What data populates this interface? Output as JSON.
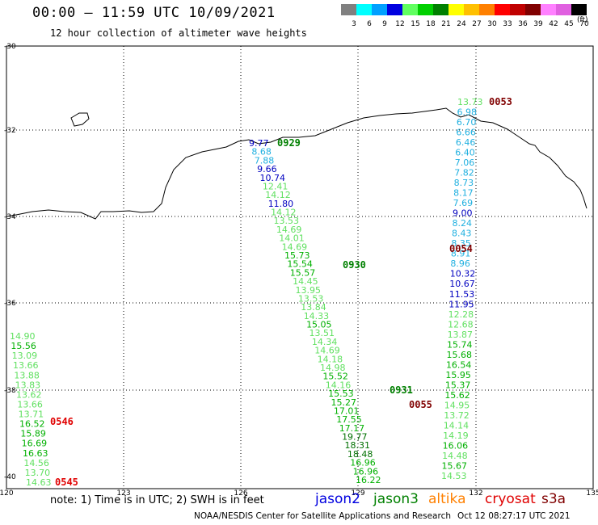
{
  "header": {
    "title": "00:00 – 11:59 UTC 10/09/2021",
    "subtitle": "12 hour collection of altimeter wave heights"
  },
  "legend": {
    "unit": "(ft)",
    "bins": [
      {
        "label": "3",
        "color": "#808080"
      },
      {
        "label": "6",
        "color": "#00ffff"
      },
      {
        "label": "9",
        "color": "#00a0ff"
      },
      {
        "label": "12",
        "color": "#0000e0"
      },
      {
        "label": "15",
        "color": "#60ff60"
      },
      {
        "label": "18",
        "color": "#00d000"
      },
      {
        "label": "21",
        "color": "#008000"
      },
      {
        "label": "24",
        "color": "#ffff00"
      },
      {
        "label": "27",
        "color": "#ffc000"
      },
      {
        "label": "30",
        "color": "#ff8000"
      },
      {
        "label": "33",
        "color": "#ff0000"
      },
      {
        "label": "36",
        "color": "#c00000"
      },
      {
        "label": "39",
        "color": "#800000"
      },
      {
        "label": "42",
        "color": "#ff80ff"
      },
      {
        "label": "45",
        "color": "#e060e0"
      },
      {
        "label": "70",
        "color": "#000000"
      }
    ]
  },
  "axes": {
    "lat_labels": [
      "-30",
      "-32",
      "-34",
      "-36",
      "-38",
      "-40"
    ],
    "lon_labels": [
      "120",
      "123",
      "126",
      "129",
      "132",
      "135"
    ]
  },
  "tracks": {
    "track_a": [
      "9.77",
      "8.68",
      "7.88",
      "9.66",
      "10.74",
      "12.41",
      "14.12",
      "11.80",
      "14.12",
      "13.53",
      "14.69",
      "14.01",
      "14.69",
      "15.73",
      "15.54",
      "15.57",
      "14.45",
      "13.95",
      "13.53",
      "13.84",
      "14.33",
      "15.05",
      "13.51",
      "14.34",
      "14.69",
      "14.18",
      "14.98",
      "15.52",
      "14.16",
      "15.53",
      "15.27",
      "17.01",
      "17.55",
      "17.17",
      "19.77",
      "18.31",
      "18.48",
      "16.96",
      "16.96",
      "16.22"
    ],
    "track_b": [
      "13.73",
      "6.98",
      "6.70",
      "6.66",
      "6.46",
      "6.40",
      "7.06",
      "7.82",
      "8.73",
      "8.17",
      "7.69",
      "9.00",
      "8.24",
      "8.43",
      "8.35",
      "8.91",
      "8.96",
      "10.32",
      "10.67",
      "11.53",
      "11.95",
      "12.28",
      "12.68",
      "13.87",
      "15.74",
      "15.68",
      "16.54",
      "15.95",
      "15.37",
      "15.62",
      "14.95",
      "13.72",
      "14.14",
      "14.19",
      "16.06",
      "14.48",
      "15.67",
      "14.53"
    ],
    "track_c": [
      "14.90",
      "15.56",
      "13.09",
      "13.66",
      "13.88",
      "13.83",
      "13.62",
      "13.66",
      "13.71",
      "16.52",
      "15.89",
      "16.69",
      "16.63",
      "14.56",
      "13.70",
      "14.63"
    ],
    "times": [
      "0053",
      "0054",
      "0929",
      "0930",
      "0931",
      "0055",
      "0546",
      "0545"
    ]
  },
  "footer": {
    "note": "note:  1) Time is in UTC; 2) SWH is in feet",
    "satellites": [
      {
        "name": "jason2",
        "color": "#0000e0"
      },
      {
        "name": "jason3",
        "color": "#008000"
      },
      {
        "name": "altika",
        "color": "#ff8000"
      },
      {
        "name": "cryosat",
        "color": "#e00000"
      },
      {
        "name": "s3a",
        "color": "#800000"
      }
    ],
    "credit": "NOAA/NESDIS Center for Satellite Applications and Research",
    "timestamp": "Oct 12 08:27:17 UTC 2021"
  }
}
